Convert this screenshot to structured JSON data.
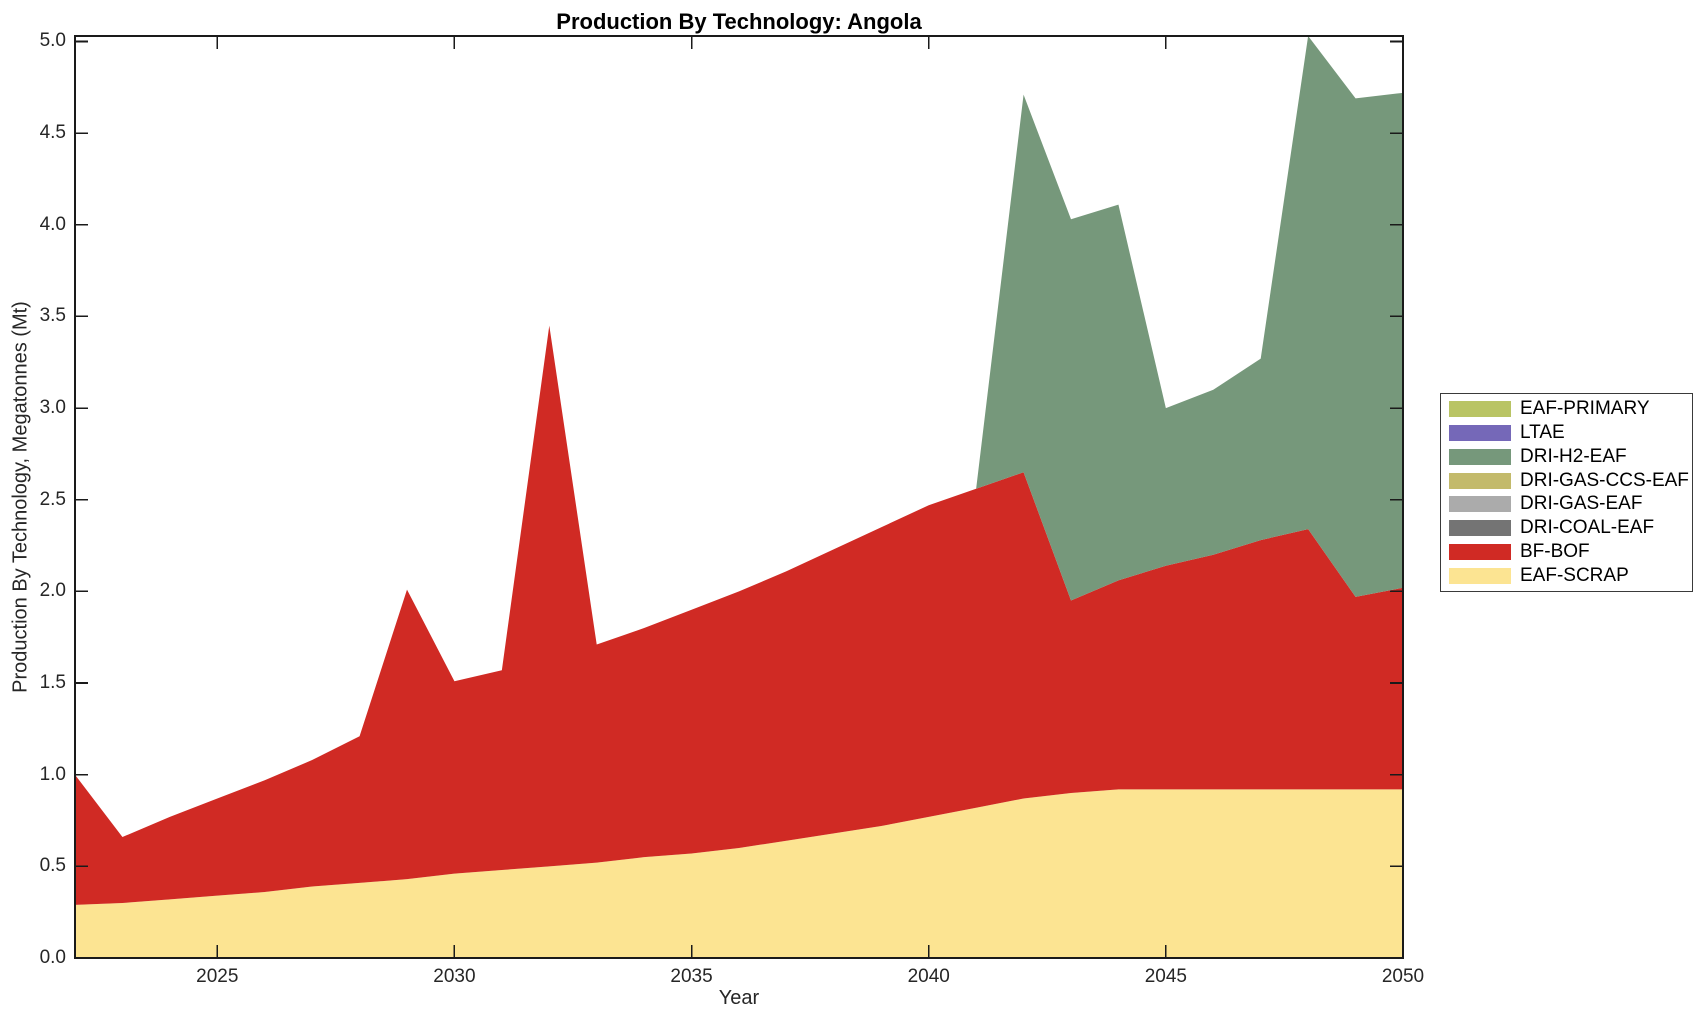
{
  "title": "Production By Technology: Angola",
  "axes": {
    "xlabel": "Year",
    "ylabel": "Production By Technology, Megatonnes (Mt)",
    "x_ticks": [
      "2025",
      "2030",
      "2035",
      "2040",
      "2045",
      "2050"
    ],
    "x_tick_values": [
      2025,
      2030,
      2035,
      2040,
      2045,
      2050
    ],
    "y_ticks": [
      "0.0",
      "0.5",
      "1.0",
      "1.5",
      "2.0",
      "2.5",
      "3.0",
      "3.5",
      "4.0",
      "4.5",
      "5.0"
    ],
    "y_tick_values": [
      0,
      0.5,
      1,
      1.5,
      2,
      2.5,
      3,
      3.5,
      4,
      4.5,
      5
    ]
  },
  "colors": {
    "axis": "#1a1a1a",
    "tick_text": "#262626",
    "background": "#ffffff"
  },
  "chart_data": {
    "type": "area",
    "stacked": true,
    "title": "Production By Technology: Angola",
    "xlabel": "Year",
    "ylabel": "Production By Technology, Megatonnes (Mt)",
    "xlim": [
      2022,
      2050
    ],
    "ylim": [
      0,
      5.03
    ],
    "grid": false,
    "legend_position": "right-outside",
    "x": [
      2022,
      2023,
      2024,
      2025,
      2026,
      2027,
      2028,
      2029,
      2030,
      2031,
      2032,
      2033,
      2034,
      2035,
      2036,
      2037,
      2038,
      2039,
      2040,
      2041,
      2042,
      2043,
      2044,
      2045,
      2046,
      2047,
      2048,
      2049,
      2050
    ],
    "series": [
      {
        "name": "EAF-SCRAP",
        "color": "#FCE492",
        "values": [
          0.29,
          0.3,
          0.32,
          0.34,
          0.36,
          0.39,
          0.41,
          0.43,
          0.46,
          0.48,
          0.5,
          0.52,
          0.55,
          0.57,
          0.6,
          0.64,
          0.68,
          0.72,
          0.77,
          0.82,
          0.87,
          0.9,
          0.92,
          0.92,
          0.92,
          0.92,
          0.92,
          0.92,
          0.92
        ]
      },
      {
        "name": "BF-BOF",
        "color": "#D02A24",
        "values": [
          0.71,
          0.36,
          0.45,
          0.53,
          0.61,
          0.69,
          0.8,
          1.58,
          1.05,
          1.09,
          2.95,
          1.19,
          1.25,
          1.33,
          1.4,
          1.47,
          1.55,
          1.63,
          1.7,
          1.74,
          1.78,
          1.05,
          1.14,
          1.22,
          1.28,
          1.36,
          1.42,
          1.05,
          1.1
        ]
      },
      {
        "name": "DRI-COAL-EAF",
        "color": "#747474",
        "values": [
          0,
          0,
          0,
          0,
          0,
          0,
          0,
          0,
          0,
          0,
          0,
          0,
          0,
          0,
          0,
          0,
          0,
          0,
          0,
          0,
          0,
          0,
          0,
          0,
          0,
          0,
          0,
          0,
          0
        ]
      },
      {
        "name": "DRI-GAS-EAF",
        "color": "#ABABAB",
        "values": [
          0,
          0,
          0,
          0,
          0,
          0,
          0,
          0,
          0,
          0,
          0,
          0,
          0,
          0,
          0,
          0,
          0,
          0,
          0,
          0,
          0,
          0,
          0,
          0,
          0,
          0,
          0,
          0,
          0
        ]
      },
      {
        "name": "DRI-GAS-CCS-EAF",
        "color": "#C3BA6B",
        "values": [
          0,
          0,
          0,
          0,
          0,
          0,
          0,
          0,
          0,
          0,
          0,
          0,
          0,
          0,
          0,
          0,
          0,
          0,
          0,
          0,
          0,
          0,
          0,
          0,
          0,
          0,
          0,
          0,
          0
        ]
      },
      {
        "name": "DRI-H2-EAF",
        "color": "#76987B",
        "values": [
          0,
          0,
          0,
          0,
          0,
          0,
          0,
          0,
          0,
          0,
          0,
          0,
          0,
          0,
          0,
          0,
          0,
          0,
          0,
          0,
          2.06,
          2.08,
          2.05,
          0.86,
          0.9,
          0.99,
          2.69,
          2.72,
          2.7
        ]
      },
      {
        "name": "LTAE",
        "color": "#7568B8",
        "values": [
          0,
          0,
          0,
          0,
          0,
          0,
          0,
          0,
          0,
          0,
          0,
          0,
          0,
          0,
          0,
          0,
          0,
          0,
          0,
          0,
          0,
          0,
          0,
          0,
          0,
          0,
          0,
          0,
          0
        ]
      },
      {
        "name": "EAF-PRIMARY",
        "color": "#B9C464",
        "values": [
          0,
          0,
          0,
          0,
          0,
          0,
          0,
          0,
          0,
          0,
          0,
          0,
          0,
          0,
          0,
          0,
          0,
          0,
          0,
          0,
          0,
          0,
          0,
          0,
          0,
          0,
          0,
          0,
          0
        ]
      }
    ]
  },
  "legend": {
    "items": [
      {
        "label": "EAF-PRIMARY",
        "color": "#B9C464"
      },
      {
        "label": "LTAE",
        "color": "#7568B8"
      },
      {
        "label": "DRI-H2-EAF",
        "color": "#76987B"
      },
      {
        "label": "DRI-GAS-CCS-EAF",
        "color": "#C3BA6B"
      },
      {
        "label": "DRI-GAS-EAF",
        "color": "#ABABAB"
      },
      {
        "label": "DRI-COAL-EAF",
        "color": "#747474"
      },
      {
        "label": "BF-BOF",
        "color": "#D02A24"
      },
      {
        "label": "EAF-SCRAP",
        "color": "#FCE492"
      }
    ]
  }
}
